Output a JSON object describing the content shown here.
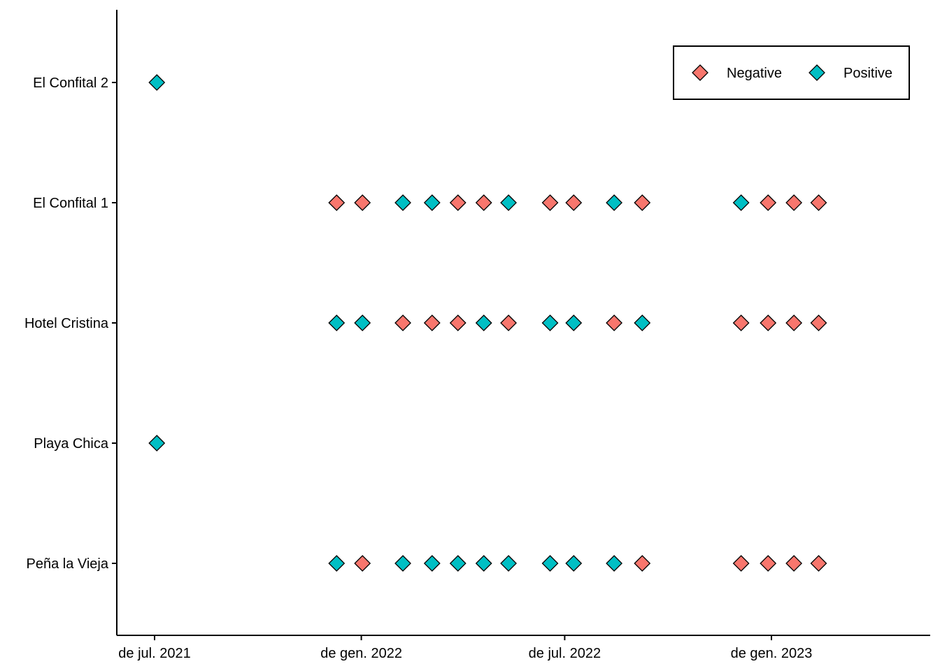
{
  "chart_data": {
    "type": "scatter",
    "marker": "diamond",
    "categories": [
      "Peña la Vieja",
      "Playa Chica",
      "Hotel Cristina",
      "El Confital 1",
      "El Confital 2"
    ],
    "x_axis": {
      "type": "date",
      "range": [
        "2021-06-13",
        "2023-06-27"
      ],
      "ticks": [
        {
          "date": "2021-07-01",
          "label": "de jul. 2021"
        },
        {
          "date": "2022-01-01",
          "label": "de gen. 2022"
        },
        {
          "date": "2022-07-01",
          "label": "de jul. 2022"
        },
        {
          "date": "2023-01-01",
          "label": "de gen. 2023"
        }
      ]
    },
    "grid": false,
    "legend": {
      "position": "top-right",
      "entries": [
        {
          "name": "Negative",
          "color": "#F8766D"
        },
        {
          "name": "Positive",
          "color": "#00BFC4"
        }
      ]
    },
    "series": [
      {
        "site": "El Confital 2",
        "points": [
          {
            "date": "2021-07-03",
            "result": "Positive"
          }
        ]
      },
      {
        "site": "El Confital 1",
        "points": [
          {
            "date": "2021-12-10",
            "result": "Negative"
          },
          {
            "date": "2022-01-02",
            "result": "Negative"
          },
          {
            "date": "2022-02-07",
            "result": "Positive"
          },
          {
            "date": "2022-03-05",
            "result": "Positive"
          },
          {
            "date": "2022-03-28",
            "result": "Negative"
          },
          {
            "date": "2022-04-20",
            "result": "Negative"
          },
          {
            "date": "2022-05-12",
            "result": "Positive"
          },
          {
            "date": "2022-06-18",
            "result": "Negative"
          },
          {
            "date": "2022-07-09",
            "result": "Negative"
          },
          {
            "date": "2022-08-14",
            "result": "Positive"
          },
          {
            "date": "2022-09-08",
            "result": "Negative"
          },
          {
            "date": "2022-12-05",
            "result": "Positive"
          },
          {
            "date": "2022-12-29",
            "result": "Negative"
          },
          {
            "date": "2023-01-21",
            "result": "Negative"
          },
          {
            "date": "2023-02-12",
            "result": "Negative"
          }
        ]
      },
      {
        "site": "Hotel Cristina",
        "points": [
          {
            "date": "2021-12-10",
            "result": "Positive"
          },
          {
            "date": "2022-01-02",
            "result": "Positive"
          },
          {
            "date": "2022-02-07",
            "result": "Negative"
          },
          {
            "date": "2022-03-05",
            "result": "Negative"
          },
          {
            "date": "2022-03-28",
            "result": "Negative"
          },
          {
            "date": "2022-04-20",
            "result": "Positive"
          },
          {
            "date": "2022-05-12",
            "result": "Negative"
          },
          {
            "date": "2022-06-18",
            "result": "Positive"
          },
          {
            "date": "2022-07-09",
            "result": "Positive"
          },
          {
            "date": "2022-08-14",
            "result": "Negative"
          },
          {
            "date": "2022-09-08",
            "result": "Positive"
          },
          {
            "date": "2022-12-05",
            "result": "Negative"
          },
          {
            "date": "2022-12-29",
            "result": "Negative"
          },
          {
            "date": "2023-01-21",
            "result": "Negative"
          },
          {
            "date": "2023-02-12",
            "result": "Negative"
          }
        ]
      },
      {
        "site": "Playa Chica",
        "points": [
          {
            "date": "2021-07-03",
            "result": "Positive"
          }
        ]
      },
      {
        "site": "Peña la Vieja",
        "points": [
          {
            "date": "2021-12-10",
            "result": "Positive"
          },
          {
            "date": "2022-01-02",
            "result": "Negative"
          },
          {
            "date": "2022-02-07",
            "result": "Positive"
          },
          {
            "date": "2022-03-05",
            "result": "Positive"
          },
          {
            "date": "2022-03-28",
            "result": "Positive"
          },
          {
            "date": "2022-04-20",
            "result": "Positive"
          },
          {
            "date": "2022-05-12",
            "result": "Positive"
          },
          {
            "date": "2022-06-18",
            "result": "Positive"
          },
          {
            "date": "2022-07-09",
            "result": "Positive"
          },
          {
            "date": "2022-08-14",
            "result": "Positive"
          },
          {
            "date": "2022-09-08",
            "result": "Negative"
          },
          {
            "date": "2022-12-05",
            "result": "Negative"
          },
          {
            "date": "2022-12-29",
            "result": "Negative"
          },
          {
            "date": "2023-01-21",
            "result": "Negative"
          },
          {
            "date": "2023-02-12",
            "result": "Negative"
          }
        ]
      }
    ]
  }
}
